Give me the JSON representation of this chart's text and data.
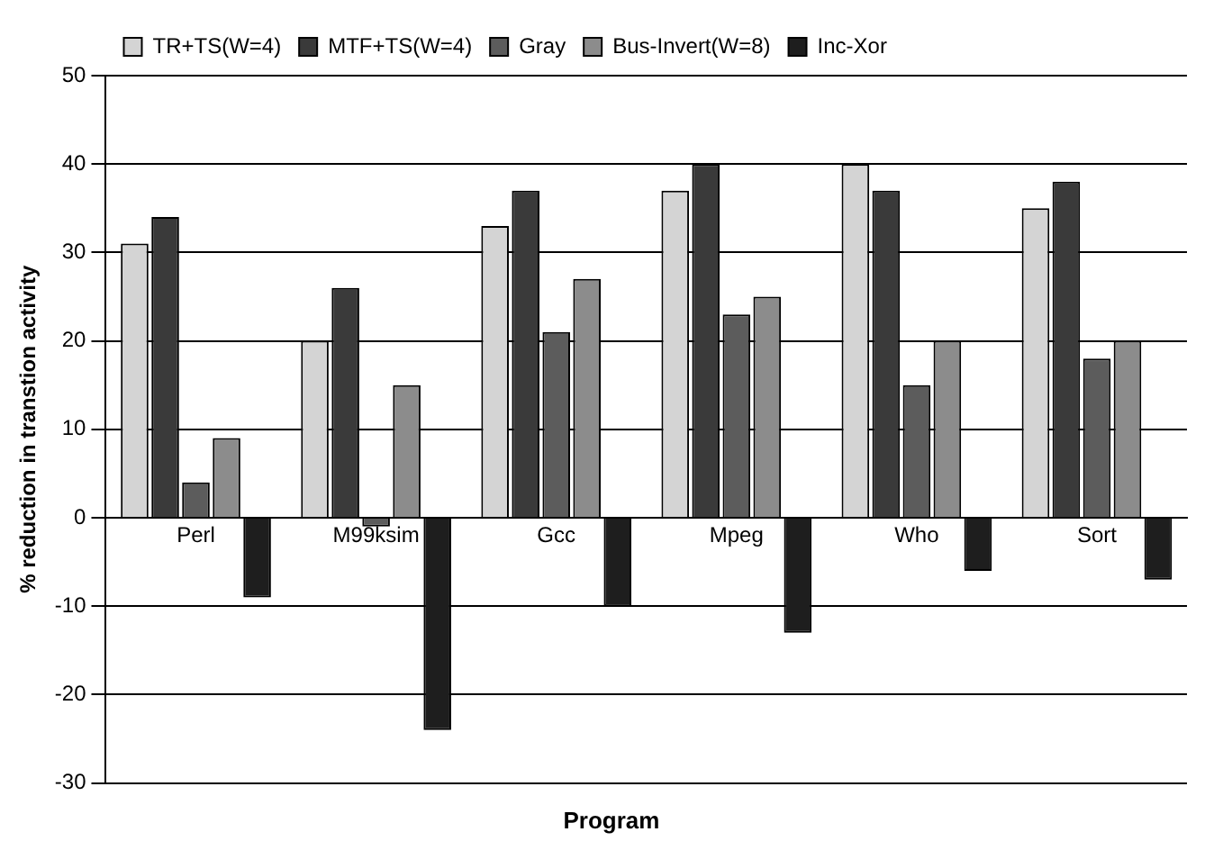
{
  "chart_data": {
    "type": "bar",
    "xlabel": "Program",
    "ylabel": "% reduction in transtion activity",
    "categories": [
      "Perl",
      "M99ksim",
      "Gcc",
      "Mpeg",
      "Who",
      "Sort"
    ],
    "series": [
      {
        "name": "TR+TS(W=4)",
        "color": "#d4d4d4",
        "values": [
          31,
          20,
          33,
          37,
          40,
          35
        ]
      },
      {
        "name": "MTF+TS(W=4)",
        "color": "#3a3a3a",
        "values": [
          34,
          26,
          37,
          40,
          37,
          38
        ]
      },
      {
        "name": "Gray",
        "color": "#5c5c5c",
        "values": [
          4,
          -1,
          21,
          23,
          15,
          18
        ]
      },
      {
        "name": "Bus-Invert(W=8)",
        "color": "#8c8c8c",
        "values": [
          9,
          15,
          27,
          25,
          20,
          20
        ]
      },
      {
        "name": "Inc-Xor",
        "color": "#1e1e1e",
        "values": [
          -9,
          -24,
          -10,
          -13,
          -6,
          -7
        ]
      }
    ],
    "ylim": [
      -30,
      50
    ],
    "yticks": [
      -30,
      -20,
      -10,
      0,
      10,
      20,
      30,
      40,
      50
    ],
    "grid": "y",
    "legend": "top left"
  }
}
